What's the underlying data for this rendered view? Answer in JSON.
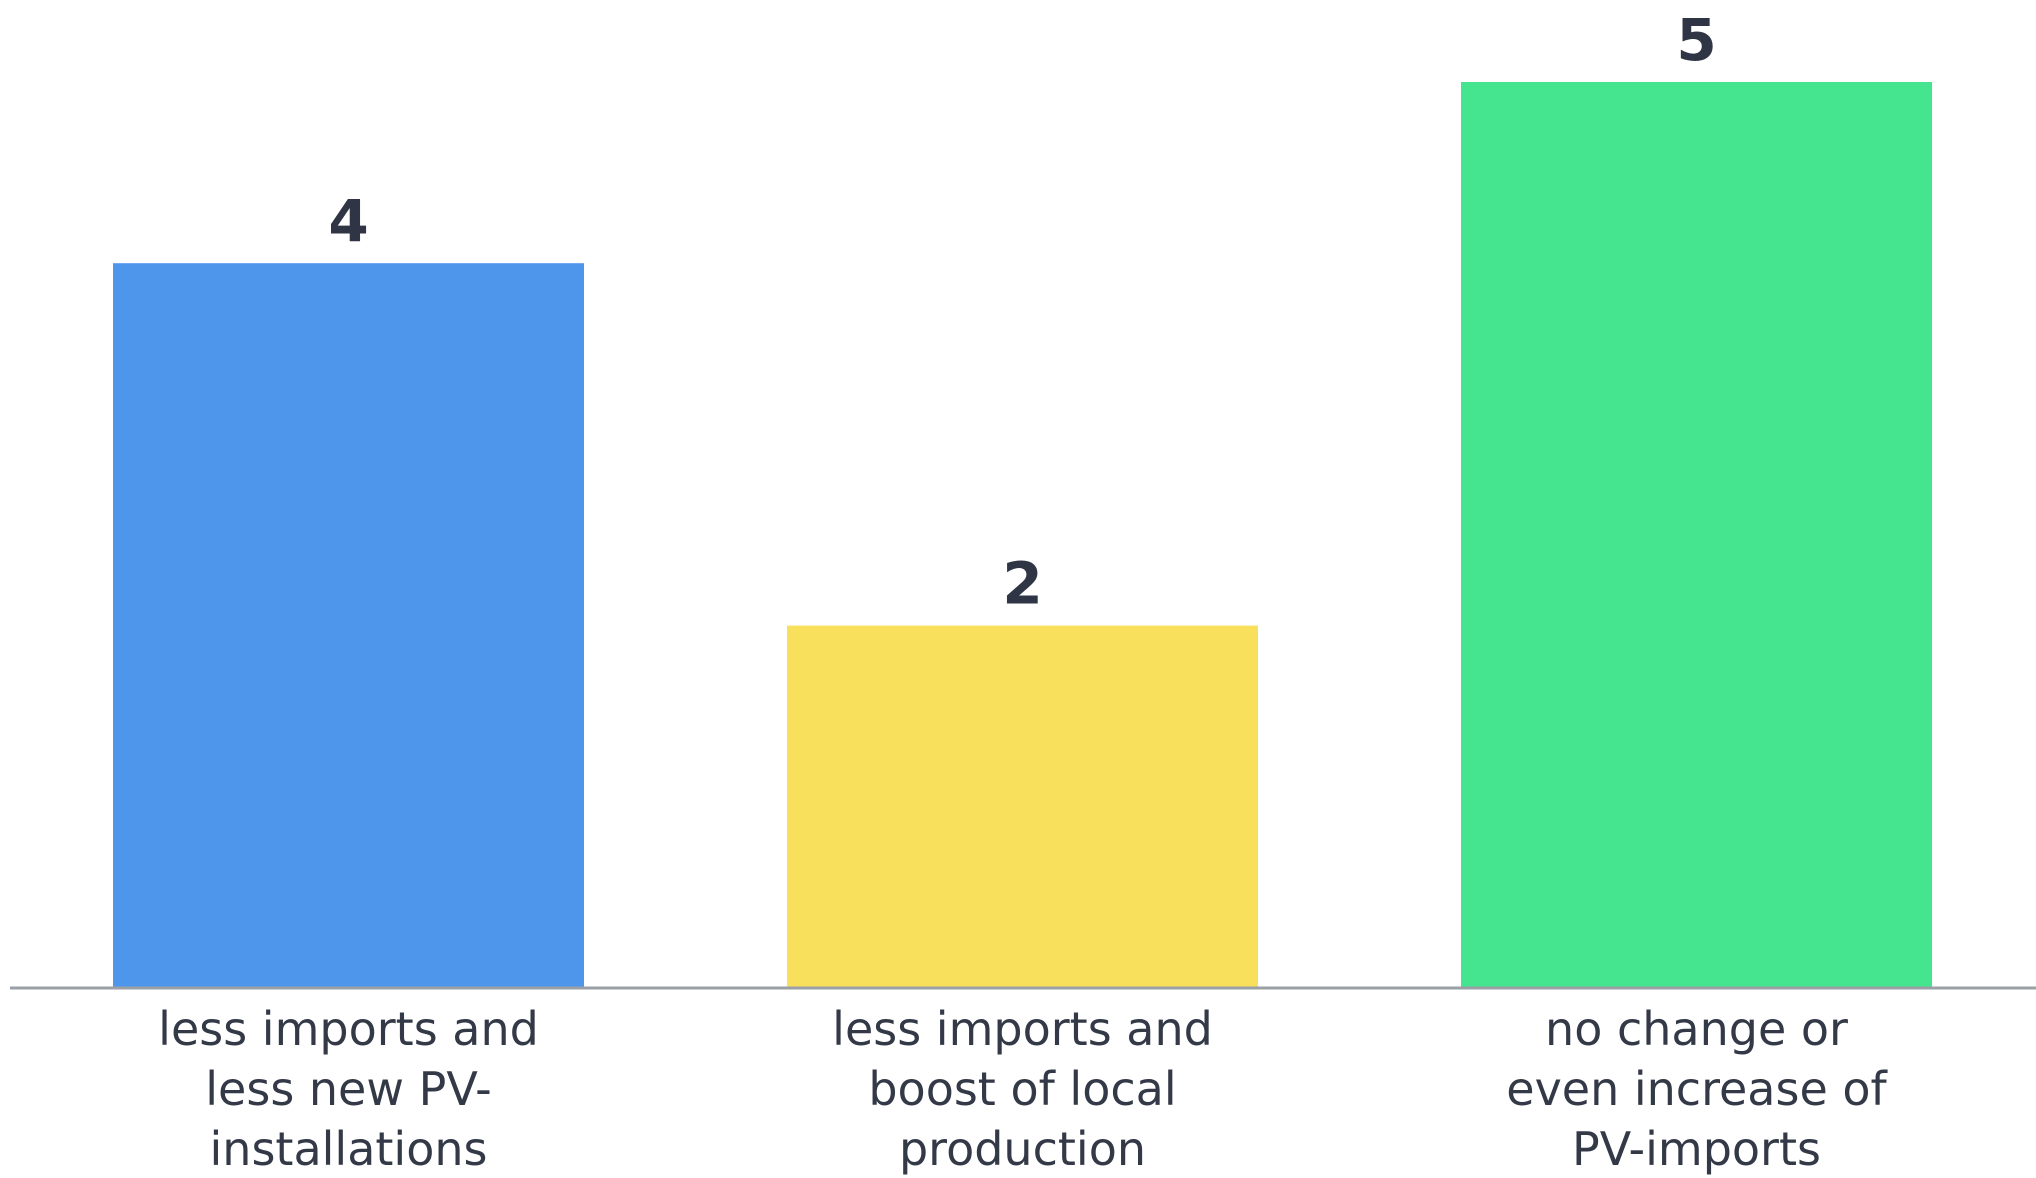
{
  "chart_data": {
    "type": "bar",
    "categories": [
      [
        "less imports and",
        "less new PV-",
        "installations"
      ],
      [
        "less imports and",
        "boost of local",
        "production"
      ],
      [
        "no change or",
        "even increase of",
        "PV-imports"
      ]
    ],
    "values": [
      4,
      2,
      5
    ],
    "data_labels": [
      "4",
      "2",
      "5"
    ],
    "colors": [
      "#4e96ec",
      "#f8df5c",
      "#45e590"
    ],
    "baseline_color": "#9aa0a6",
    "label_color": "#2f3544",
    "ylim": [
      0,
      5
    ],
    "grid": false,
    "legend": "none"
  }
}
